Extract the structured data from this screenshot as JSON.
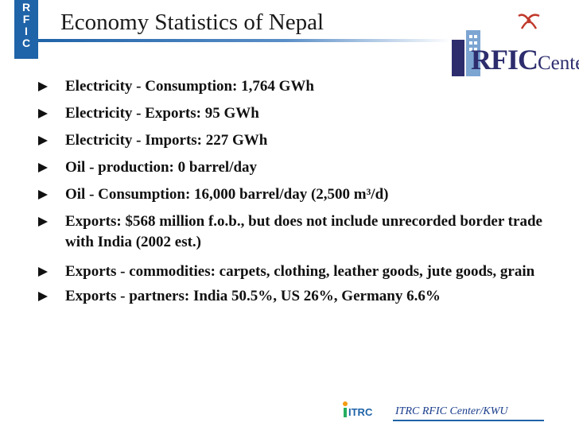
{
  "badge": {
    "letters": [
      "R",
      "F",
      "I",
      "C"
    ]
  },
  "title": "Economy Statistics of Nepal",
  "logo": {
    "main": "RFIC",
    "suffix": "Center"
  },
  "colors": {
    "accent": "#1f63a8",
    "logo_text": "#2d2d6e",
    "logo_mark": "#c0392b",
    "footer_text": "#1a3d8c"
  },
  "bullets": [
    "Electricity - Consumption: 1,764 GWh",
    "Electricity - Exports: 95 GWh",
    "Electricity - Imports: 227 GWh",
    "Oil - production: 0 barrel/day",
    "Oil - Consumption: 16,000 barrel/day (2,500 m³/d)",
    "Exports: $568 million f.o.b., but does not include unrecorded border trade with India (2002 est.)",
    "Exports - commodities: carpets, clothing, leather goods, jute goods, grain",
    "Exports - partners: India 50.5%, US 26%, Germany 6.6%"
  ],
  "footer": {
    "logo_text": "ITRC",
    "label": "ITRC RFIC Center/KWU"
  }
}
